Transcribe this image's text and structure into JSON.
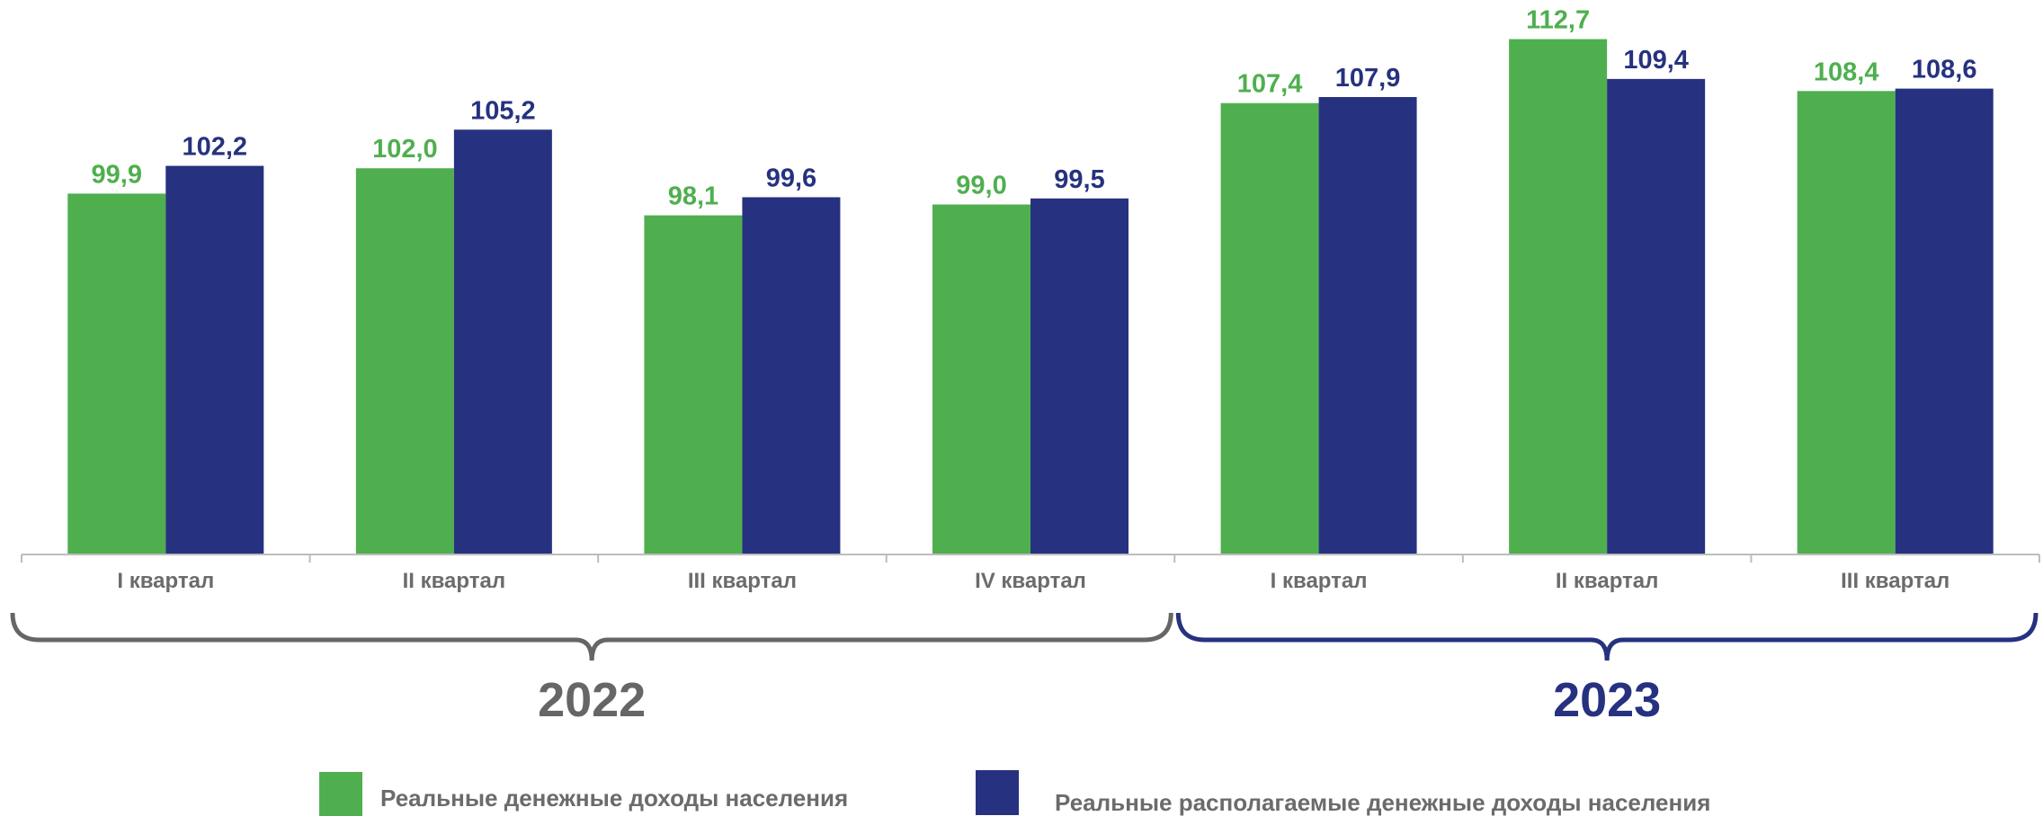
{
  "chart_data": {
    "type": "bar",
    "categories": [
      "I квартал",
      "II квартал",
      "III квартал",
      "IV квартал",
      "I квартал",
      "II квартал",
      "III квартал"
    ],
    "groups": [
      {
        "label": "2022",
        "from": 0,
        "to": 3,
        "color": "#666666"
      },
      {
        "label": "2023",
        "from": 4,
        "to": 6,
        "color": "#26327f"
      }
    ],
    "series": [
      {
        "name": "Реальные денежные доходы населения",
        "color": "#4faf4f",
        "values": [
          99.9,
          102.0,
          98.1,
          99.0,
          107.4,
          112.7,
          108.4
        ],
        "labels": [
          "99,9",
          "102,0",
          "98,1",
          "99,0",
          "107,4",
          "112,7",
          "108,4"
        ]
      },
      {
        "name": "Реальные располагаемые денежные доходы населения",
        "color": "#26327f",
        "values": [
          102.2,
          105.2,
          99.6,
          99.5,
          107.9,
          109.4,
          108.6
        ],
        "labels": [
          "102,2",
          "105,2",
          "99,6",
          "99,5",
          "107,9",
          "109,4",
          "108,6"
        ]
      }
    ],
    "legend_position": "bottom",
    "grid": false
  }
}
